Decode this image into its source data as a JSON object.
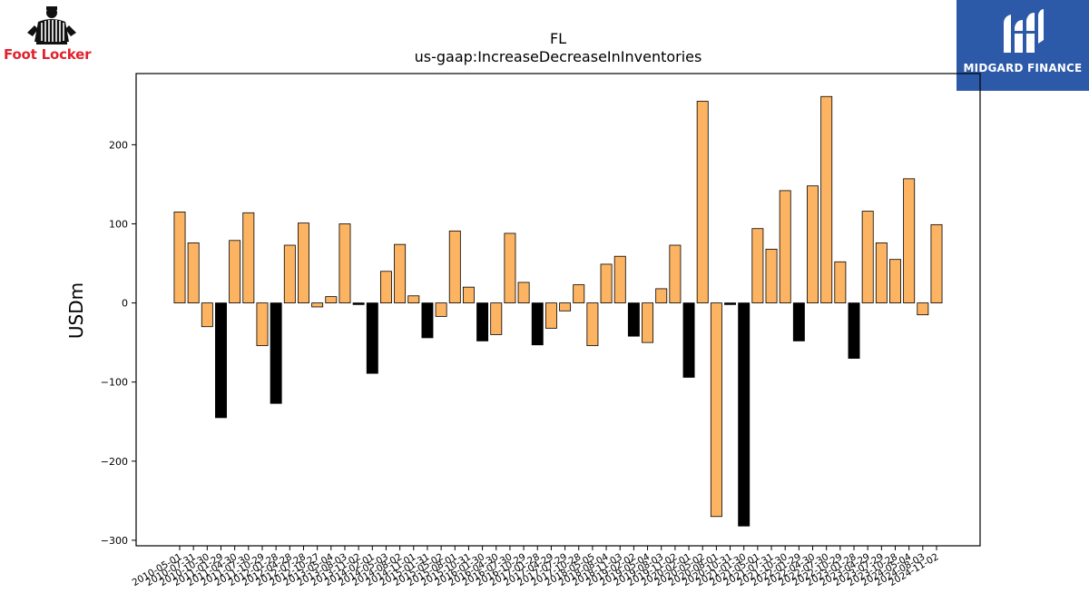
{
  "logos": {
    "left_brand": "Foot Locker",
    "left_icon": "referee-mascot-icon",
    "right_brand": "MIDGARD FINANCE",
    "right_icon": "midgard-mark-icon"
  },
  "colors": {
    "positive_bar": "#fdb462",
    "negative_bar_alt": "#000000",
    "logo_right_bg": "#2c5aa8",
    "logo_left_text": "#e0232f"
  },
  "chart_data": {
    "type": "bar",
    "title": "FL",
    "subtitle": "us-gaap:IncreaseDecreaseInInventories",
    "ylabel": "USDm",
    "xlabel": "",
    "ylim": [
      -307,
      290
    ],
    "yticks": [
      -300,
      -200,
      -100,
      0,
      100,
      200
    ],
    "grid": false,
    "categories": [
      "2010-05-01",
      "2010-07-31",
      "2010-10-30",
      "2011-01-29",
      "2011-04-30",
      "2011-07-30",
      "2011-10-29",
      "2012-01-28",
      "2012-04-28",
      "2012-07-28",
      "2012-10-27",
      "2013-05-04",
      "2013-08-03",
      "2013-11-02",
      "2014-02-01",
      "2014-05-03",
      "2014-08-02",
      "2014-11-01",
      "2015-01-31",
      "2015-05-02",
      "2015-08-01",
      "2015-10-31",
      "2016-01-30",
      "2016-04-30",
      "2016-07-30",
      "2016-10-29",
      "2017-01-28",
      "2017-04-29",
      "2017-07-29",
      "2017-10-28",
      "2018-05-05",
      "2018-08-04",
      "2018-11-03",
      "2019-02-02",
      "2019-05-04",
      "2019-08-03",
      "2019-11-02",
      "2020-02-01",
      "2020-05-02",
      "2020-08-01",
      "2020-10-31",
      "2021-01-30",
      "2021-05-01",
      "2021-07-31",
      "2021-10-30",
      "2022-01-29",
      "2022-04-30",
      "2022-07-30",
      "2022-10-29",
      "2023-01-28",
      "2023-04-29",
      "2023-07-29",
      "2023-10-28",
      "2024-05-04",
      "2024-08-03",
      "2024-11-02"
    ],
    "values": [
      115,
      76,
      -30,
      -145,
      79,
      114,
      -54,
      -127,
      73,
      101,
      -5,
      8,
      100,
      -2,
      -89,
      40,
      74,
      9,
      -44,
      -17,
      91,
      20,
      -48,
      -40,
      88,
      26,
      -53,
      -32,
      -10,
      23,
      -54,
      49,
      59,
      -42,
      -50,
      18,
      73,
      -94,
      255,
      -270,
      -2,
      -282,
      94,
      68,
      142,
      -48,
      148,
      261,
      52,
      -70,
      116,
      76,
      55,
      157,
      -15,
      99
    ],
    "bar_colors": [
      "#fdb462",
      "#fdb462",
      "#fdb462",
      "#000000",
      "#fdb462",
      "#fdb462",
      "#fdb462",
      "#000000",
      "#fdb462",
      "#fdb462",
      "#fdb462",
      "#fdb462",
      "#fdb462",
      "#000000",
      "#000000",
      "#fdb462",
      "#fdb462",
      "#fdb462",
      "#000000",
      "#fdb462",
      "#fdb462",
      "#fdb462",
      "#000000",
      "#fdb462",
      "#fdb462",
      "#fdb462",
      "#000000",
      "#fdb462",
      "#fdb462",
      "#fdb462",
      "#fdb462",
      "#fdb462",
      "#fdb462",
      "#000000",
      "#fdb462",
      "#fdb462",
      "#fdb462",
      "#000000",
      "#fdb462",
      "#fdb462",
      "#000000",
      "#000000",
      "#fdb462",
      "#fdb462",
      "#fdb462",
      "#000000",
      "#fdb462",
      "#fdb462",
      "#fdb462",
      "#000000",
      "#fdb462",
      "#fdb462",
      "#fdb462",
      "#fdb462",
      "#fdb462",
      "#fdb462"
    ]
  }
}
